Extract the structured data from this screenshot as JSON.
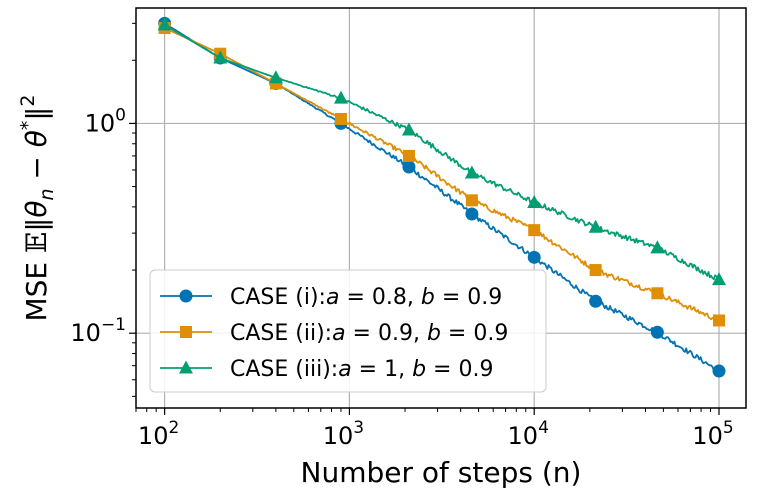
{
  "chart_data": {
    "type": "line",
    "xscale": "log",
    "yscale": "log",
    "xlabel": "Number of steps (n)",
    "ylabel": "MSE 𝔼‖θn − θ*‖²",
    "ylabel_parts": {
      "prefix": "MSE ",
      "blackboard_E": "𝔼",
      "open": "‖θ",
      "sub": "n",
      "mid": " − θ",
      "sup_star": "*",
      "close": "‖",
      "sup2": "2"
    },
    "xlim": [
      70,
      140000
    ],
    "ylim": [
      0.044,
      3.55
    ],
    "grid": true,
    "legend_position": "lower-left",
    "x_ticks": [
      {
        "value": 100,
        "base": "10",
        "exp": "2"
      },
      {
        "value": 1000,
        "base": "10",
        "exp": "3"
      },
      {
        "value": 10000,
        "base": "10",
        "exp": "4"
      },
      {
        "value": 100000,
        "base": "10",
        "exp": "5"
      }
    ],
    "y_ticks": [
      {
        "value": 0.1,
        "base": "10",
        "exp": "−1"
      },
      {
        "value": 1,
        "base": "10",
        "exp": "0"
      }
    ],
    "series": [
      {
        "name": "CASE (i)",
        "legend_label": {
          "case": "CASE (i):",
          "a": "0.8",
          "b": "0.9"
        },
        "color": "#0173b2",
        "marker": "circle",
        "x": [
          100,
          200,
          400,
          900,
          2100,
          4600,
          10000,
          21500,
          46400,
          100000
        ],
        "values": [
          3.0,
          2.05,
          1.55,
          1.0,
          0.62,
          0.37,
          0.23,
          0.142,
          0.101,
          0.066
        ]
      },
      {
        "name": "CASE (ii)",
        "legend_label": {
          "case": "CASE (ii):",
          "a": "0.9",
          "b": "0.9"
        },
        "color": "#de8f05",
        "marker": "square",
        "x": [
          100,
          200,
          400,
          900,
          2100,
          4600,
          10000,
          21500,
          46400,
          100000
        ],
        "values": [
          2.85,
          2.15,
          1.55,
          1.05,
          0.7,
          0.43,
          0.31,
          0.2,
          0.155,
          0.115
        ]
      },
      {
        "name": "CASE (iii)",
        "legend_label": {
          "case": "CASE (iii):",
          "a": "1",
          "b": "0.9"
        },
        "color": "#029e73",
        "marker": "triangle",
        "x": [
          100,
          200,
          400,
          900,
          2100,
          4600,
          10000,
          21500,
          46400,
          100000
        ],
        "values": [
          2.95,
          2.05,
          1.65,
          1.32,
          0.93,
          0.58,
          0.42,
          0.32,
          0.255,
          0.18
        ]
      }
    ]
  }
}
